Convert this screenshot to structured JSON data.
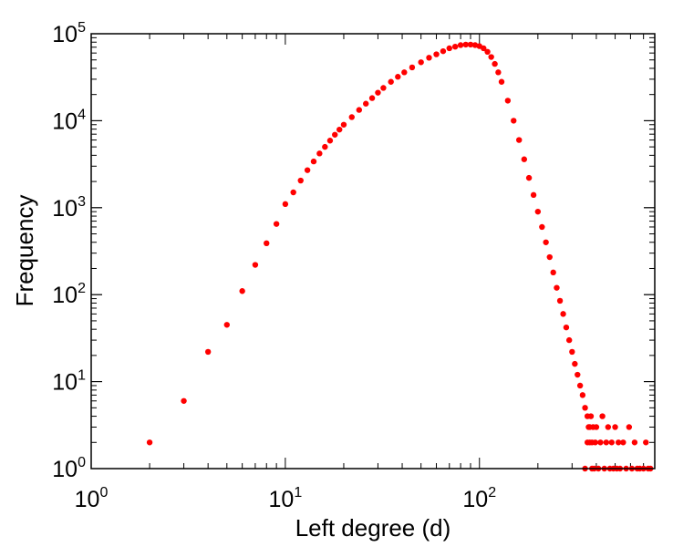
{
  "chart_data": {
    "type": "scatter",
    "xlabel": "Left degree (d)",
    "ylabel": "Frequency",
    "xscale": "log",
    "yscale": "log",
    "xlim": [
      1,
      800
    ],
    "ylim": [
      1,
      100000
    ],
    "x_ticks": [
      {
        "base": "10",
        "exp": "0",
        "value": 1
      },
      {
        "base": "10",
        "exp": "1",
        "value": 10
      },
      {
        "base": "10",
        "exp": "2",
        "value": 100
      }
    ],
    "y_ticks": [
      {
        "base": "10",
        "exp": "0",
        "value": 1
      },
      {
        "base": "10",
        "exp": "1",
        "value": 10
      },
      {
        "base": "10",
        "exp": "2",
        "value": 100
      },
      {
        "base": "10",
        "exp": "3",
        "value": 1000
      },
      {
        "base": "10",
        "exp": "4",
        "value": 10000
      },
      {
        "base": "10",
        "exp": "5",
        "value": 100000
      }
    ],
    "grid": false,
    "marker_color": "#ff0000",
    "series": [
      {
        "points": [
          [
            2,
            2
          ],
          [
            3,
            6
          ],
          [
            4,
            22
          ],
          [
            5,
            45
          ],
          [
            6,
            110
          ],
          [
            7,
            220
          ],
          [
            8,
            390
          ],
          [
            9,
            650
          ],
          [
            10,
            1100
          ],
          [
            11,
            1500
          ],
          [
            12,
            2050
          ],
          [
            13,
            2700
          ],
          [
            14,
            3400
          ],
          [
            15,
            4200
          ],
          [
            16,
            5000
          ],
          [
            17,
            5900
          ],
          [
            18,
            6900
          ],
          [
            19,
            7900
          ],
          [
            20,
            9000
          ],
          [
            22,
            11000
          ],
          [
            24,
            13300
          ],
          [
            26,
            15700
          ],
          [
            28,
            18200
          ],
          [
            30,
            21000
          ],
          [
            32,
            23800
          ],
          [
            35,
            28000
          ],
          [
            38,
            32000
          ],
          [
            41,
            36000
          ],
          [
            45,
            41000
          ],
          [
            50,
            47000
          ],
          [
            55,
            53000
          ],
          [
            60,
            58000
          ],
          [
            65,
            63000
          ],
          [
            70,
            68000
          ],
          [
            75,
            71000
          ],
          [
            80,
            74000
          ],
          [
            85,
            75000
          ],
          [
            90,
            75000
          ],
          [
            95,
            74000
          ],
          [
            100,
            72000
          ],
          [
            105,
            68000
          ],
          [
            110,
            62000
          ],
          [
            115,
            54000
          ],
          [
            120,
            45000
          ],
          [
            125,
            36000
          ],
          [
            130,
            28000
          ],
          [
            140,
            17000
          ],
          [
            150,
            10000
          ],
          [
            160,
            6000
          ],
          [
            170,
            3600
          ],
          [
            180,
            2200
          ],
          [
            190,
            1400
          ],
          [
            200,
            900
          ],
          [
            210,
            600
          ],
          [
            220,
            400
          ],
          [
            230,
            270
          ],
          [
            240,
            180
          ],
          [
            250,
            120
          ],
          [
            260,
            85
          ],
          [
            270,
            60
          ],
          [
            280,
            42
          ],
          [
            290,
            30
          ],
          [
            300,
            22
          ],
          [
            310,
            16
          ],
          [
            320,
            12
          ],
          [
            330,
            9
          ],
          [
            340,
            7
          ],
          [
            350,
            5
          ],
          [
            360,
            4
          ],
          [
            370,
            3
          ],
          [
            380,
            2
          ],
          [
            390,
            1
          ],
          [
            350,
            1
          ],
          [
            360,
            2
          ],
          [
            365,
            3
          ],
          [
            370,
            2
          ],
          [
            375,
            4
          ],
          [
            380,
            1
          ],
          [
            385,
            3
          ],
          [
            395,
            2
          ],
          [
            400,
            3
          ],
          [
            410,
            1
          ],
          [
            420,
            2
          ],
          [
            430,
            4
          ],
          [
            440,
            1
          ],
          [
            450,
            2
          ],
          [
            460,
            3
          ],
          [
            470,
            1
          ],
          [
            480,
            2
          ],
          [
            490,
            1
          ],
          [
            500,
            3
          ],
          [
            510,
            1
          ],
          [
            520,
            2
          ],
          [
            530,
            1
          ],
          [
            550,
            2
          ],
          [
            570,
            1
          ],
          [
            590,
            3
          ],
          [
            610,
            1
          ],
          [
            630,
            2
          ],
          [
            650,
            1
          ],
          [
            670,
            1
          ],
          [
            700,
            1
          ],
          [
            720,
            2
          ],
          [
            740,
            1
          ],
          [
            760,
            1
          ]
        ]
      }
    ]
  }
}
